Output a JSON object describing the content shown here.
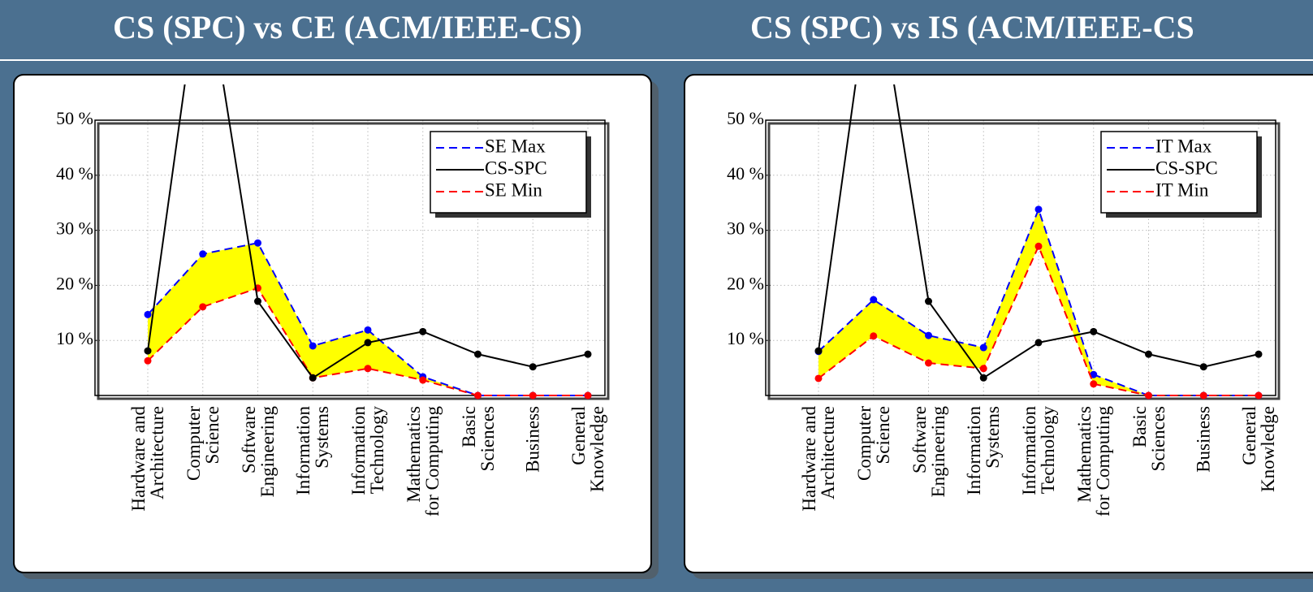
{
  "chart_data": [
    {
      "type": "line",
      "title": "CS (SPC) vs CE (ACM/IEEE-CS)",
      "categories": [
        "Hardware and\nArchitecture",
        "Computer\nScience",
        "Software\nEngineering",
        "Information\nSystems",
        "Information\nTechnology",
        "Mathematics\nfor Computing",
        "Basic\nSciences",
        "Business",
        "General\nKnowledge"
      ],
      "series": [
        {
          "name": "SE Max",
          "color": "#0000ff",
          "style": "dashed",
          "values": [
            14.7,
            25.7,
            27.7,
            9.0,
            11.9,
            3.4,
            0,
            0,
            0
          ]
        },
        {
          "name": "CS-SPC",
          "color": "#000000",
          "style": "solid",
          "values": [
            8.1,
            80,
            17.1,
            3.2,
            9.6,
            11.6,
            7.5,
            5.2,
            7.5
          ]
        },
        {
          "name": "SE Min",
          "color": "#ff0000",
          "style": "dashed",
          "values": [
            6.3,
            16.1,
            19.5,
            3.2,
            4.9,
            2.8,
            0,
            0,
            0
          ]
        }
      ],
      "fill_color": "#ffff00",
      "ylim": [
        0,
        50
      ],
      "yticks": [
        {
          "value": 10,
          "label": "10 %"
        },
        {
          "value": 20,
          "label": "20 %"
        },
        {
          "value": 30,
          "label": "30 %"
        },
        {
          "value": 40,
          "label": "40 %"
        },
        {
          "value": 50,
          "label": "50 %"
        }
      ],
      "grid": true,
      "legend": "upper right"
    },
    {
      "type": "line",
      "title": "CS (SPC) vs IS (ACM/IEEE-CS",
      "categories": [
        "Hardware and\nArchitecture",
        "Computer\nScience",
        "Software\nEngineering",
        "Information\nSystems",
        "Information\nTechnology",
        "Mathematics\nfor Computing",
        "Basic\nSciences",
        "Business",
        "General\nKnowledge"
      ],
      "series": [
        {
          "name": "IT Max",
          "color": "#0000ff",
          "style": "dashed",
          "values": [
            8.0,
            17.4,
            10.9,
            8.7,
            33.8,
            3.8,
            0,
            0,
            0
          ]
        },
        {
          "name": "CS-SPC",
          "color": "#000000",
          "style": "solid",
          "values": [
            8.1,
            80,
            17.1,
            3.2,
            9.6,
            11.6,
            7.5,
            5.2,
            7.5
          ]
        },
        {
          "name": "IT Min",
          "color": "#ff0000",
          "style": "dashed",
          "values": [
            3.1,
            10.8,
            5.9,
            4.9,
            27.1,
            2.1,
            0,
            0,
            0
          ]
        }
      ],
      "fill_color": "#ffff00",
      "ylim": [
        0,
        50
      ],
      "yticks": [
        {
          "value": 10,
          "label": "10 %"
        },
        {
          "value": 20,
          "label": "20 %"
        },
        {
          "value": 30,
          "label": "30 %"
        },
        {
          "value": 40,
          "label": "40 %"
        },
        {
          "value": 50,
          "label": "50 %"
        }
      ],
      "grid": true,
      "legend": "upper right"
    }
  ]
}
